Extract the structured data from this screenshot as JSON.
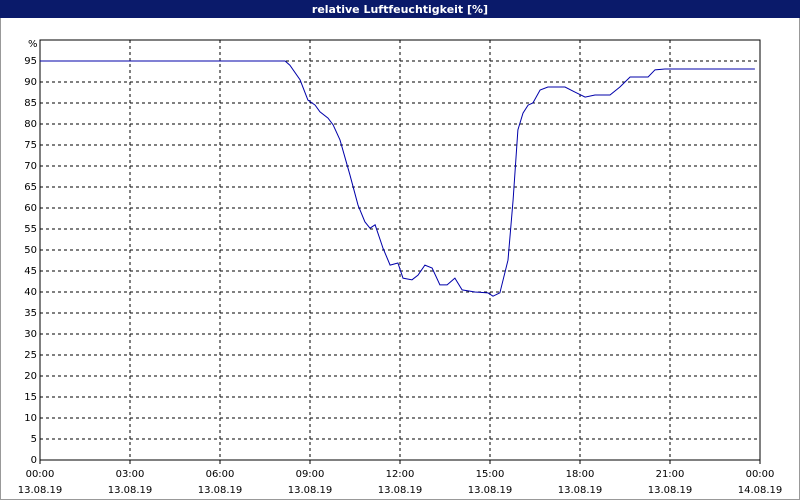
{
  "chart_data": {
    "type": "line",
    "title": "relative Luftfeuchtigkeit [%]",
    "y_unit_label": "%",
    "x": [
      0,
      8.17,
      8.33,
      8.67,
      8.93,
      9.17,
      9.33,
      9.6,
      9.77,
      10,
      10.33,
      10.6,
      10.83,
      11,
      11.17,
      11.43,
      11.67,
      11.93,
      12.1,
      12.4,
      12.6,
      12.83,
      13.07,
      13.33,
      13.57,
      13.83,
      14.07,
      14.5,
      14.93,
      15.1,
      15.33,
      15.6,
      15.77,
      15.93,
      16.1,
      16.27,
      16.43,
      16.67,
      16.93,
      17.5,
      17.83,
      18.17,
      18.5,
      19,
      19.33,
      19.67,
      20.27,
      20.5,
      20.83,
      23.83
    ],
    "series": [
      {
        "name": "relative Luftfeuchtigkeit",
        "color": "#0000aa",
        "values": [
          95,
          95,
          94,
          90.5,
          85.7,
          84.5,
          82.9,
          81.4,
          79.8,
          76.2,
          67.9,
          60.7,
          56.7,
          55.2,
          56,
          50.5,
          46.4,
          46.9,
          43.3,
          42.9,
          44,
          46.4,
          45.7,
          41.7,
          41.7,
          43.3,
          40.5,
          40,
          39.8,
          39,
          39.8,
          47.6,
          61.9,
          78.6,
          82.6,
          84.5,
          85,
          88.1,
          88.8,
          88.8,
          87.6,
          86.4,
          86.9,
          86.9,
          88.8,
          91.2,
          91.2,
          92.9,
          93.1,
          93.1
        ]
      }
    ],
    "xlim": [
      0,
      24
    ],
    "xticks": [
      {
        "value": 0,
        "label": "00:00"
      },
      {
        "value": 3,
        "label": "03:00"
      },
      {
        "value": 6,
        "label": "06:00"
      },
      {
        "value": 9,
        "label": "09:00"
      },
      {
        "value": 12,
        "label": "12:00"
      },
      {
        "value": 15,
        "label": "15:00"
      },
      {
        "value": 18,
        "label": "18:00"
      },
      {
        "value": 21,
        "label": "21:00"
      },
      {
        "value": 24,
        "label": "00:00"
      }
    ],
    "xtick_dates": [
      "13.08.19",
      "13.08.19",
      "13.08.19",
      "13.08.19",
      "13.08.19",
      "13.08.19",
      "13.08.19",
      "13.08.19",
      "14.08.19"
    ],
    "ylim": [
      0,
      100
    ],
    "yticks": [
      0,
      5,
      10,
      15,
      20,
      25,
      30,
      35,
      40,
      45,
      50,
      55,
      60,
      65,
      70,
      75,
      80,
      85,
      90,
      95
    ],
    "grid": true
  }
}
